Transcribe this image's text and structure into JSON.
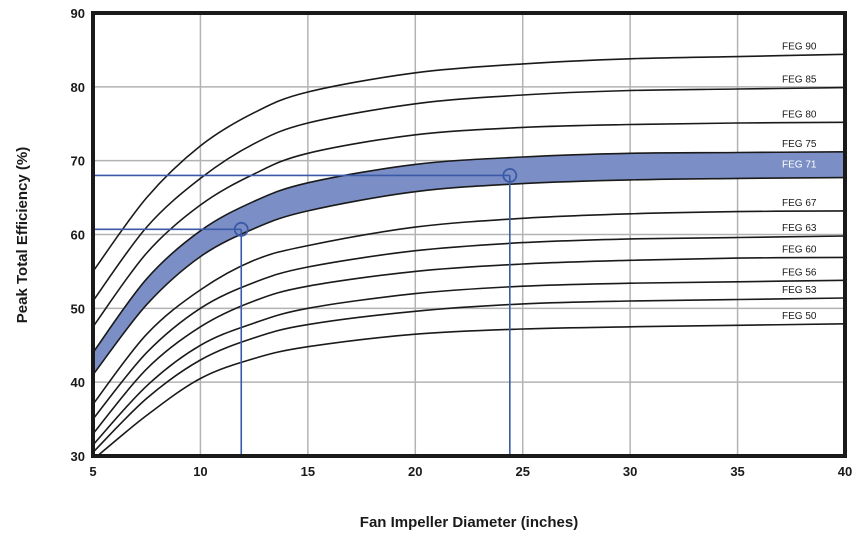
{
  "chart_data": {
    "type": "line",
    "xlabel": "Fan Impeller Diameter (inches)",
    "ylabel": "Peak Total Efficiency (%)",
    "xlim": [
      5,
      40
    ],
    "ylim": [
      30,
      90
    ],
    "xticks": [
      5,
      10,
      15,
      20,
      25,
      30,
      35,
      40
    ],
    "yticks": [
      30,
      40,
      50,
      60,
      70,
      80,
      90
    ],
    "grid": true,
    "x": [
      5,
      7.5,
      10,
      12.5,
      15,
      20,
      25,
      30,
      35,
      40
    ],
    "series": [
      {
        "name": "FEG 90",
        "values": [
          55,
          65,
          72,
          76.5,
          79.3,
          81.9,
          83.1,
          83.8,
          84.1,
          84.4
        ]
      },
      {
        "name": "FEG 85",
        "values": [
          51,
          61,
          67.6,
          72.3,
          75.1,
          77.7,
          78.9,
          79.5,
          79.7,
          79.9
        ]
      },
      {
        "name": "FEG 80",
        "values": [
          47.5,
          57.5,
          64,
          68.2,
          71,
          73.5,
          74.5,
          74.9,
          75.1,
          75.2
        ]
      },
      {
        "name": "FEG 75",
        "values": [
          44,
          54,
          60.5,
          64.5,
          67,
          69.5,
          70.5,
          71,
          71.1,
          71.2
        ]
      },
      {
        "name": "FEG 71",
        "values": [
          41,
          50.5,
          57,
          60.8,
          63.2,
          65.8,
          66.9,
          67.4,
          67.6,
          67.7
        ]
      },
      {
        "name": "FEG 67",
        "values": [
          37,
          46.5,
          52.5,
          56.5,
          58.5,
          61,
          62.2,
          62.8,
          63.1,
          63.2
        ]
      },
      {
        "name": "FEG 63",
        "values": [
          35,
          44,
          50,
          53.5,
          55.6,
          57.8,
          58.9,
          59.4,
          59.6,
          59.8
        ]
      },
      {
        "name": "FEG 60",
        "values": [
          33,
          41.8,
          47.5,
          51,
          53,
          55,
          56,
          56.5,
          56.8,
          56.9
        ]
      },
      {
        "name": "FEG 56",
        "values": [
          31.5,
          39.5,
          45,
          48,
          50,
          52,
          53,
          53.4,
          53.6,
          53.8
        ]
      },
      {
        "name": "FEG 53",
        "values": [
          30.5,
          37.8,
          43,
          46,
          47.8,
          49.6,
          50.6,
          51,
          51.2,
          51.4
        ]
      },
      {
        "name": "FEG 50",
        "values": [
          29.5,
          35.5,
          40.5,
          43.2,
          44.8,
          46.5,
          47.2,
          47.5,
          47.7,
          47.9
        ]
      }
    ],
    "band": {
      "series": "FEG 71",
      "upper": "FEG 75",
      "lower": "FEG 71",
      "color": "#7b8fc6"
    },
    "markers": [
      {
        "x": 11.9,
        "y": 60.7
      },
      {
        "x": 24.4,
        "y": 68.0
      }
    ],
    "colors": {
      "curve": "#1a1a1a",
      "grid": "#b3b3b3",
      "band": "#7b8fc6",
      "marker": "#3a5aa8",
      "frame": "#1a1a1a"
    }
  }
}
